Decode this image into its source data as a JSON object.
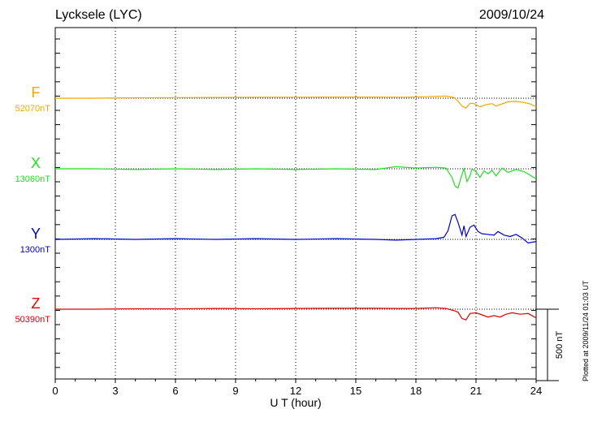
{
  "chart_data": {
    "type": "line",
    "title": "Lycksele (LYC)",
    "date": "2009/10/24",
    "xlabel": "U T (hour)",
    "xlim": [
      0,
      24
    ],
    "xticks": [
      0,
      3,
      6,
      9,
      12,
      15,
      18,
      21,
      24
    ],
    "grid": "vertical dotted at every 3 hours",
    "scale_bar": {
      "label": "500 nT",
      "value_nT": 500
    },
    "note": "Plotted at 2009/11/24 01:03 UT",
    "series": [
      {
        "name": "F",
        "baseline_label": "52070nT",
        "baseline_nT": 52070,
        "color": "#f0a800",
        "points": [
          [
            0,
            0
          ],
          [
            2,
            0
          ],
          [
            4,
            3
          ],
          [
            6,
            4
          ],
          [
            8,
            5
          ],
          [
            10,
            6
          ],
          [
            12,
            7
          ],
          [
            14,
            8
          ],
          [
            16,
            8
          ],
          [
            17.5,
            7
          ],
          [
            18.5,
            10
          ],
          [
            19,
            12
          ],
          [
            19.5,
            15
          ],
          [
            19.9,
            5
          ],
          [
            20.1,
            -20
          ],
          [
            20.3,
            -55
          ],
          [
            20.5,
            -70
          ],
          [
            20.7,
            -35
          ],
          [
            20.9,
            -38
          ],
          [
            21.2,
            -60
          ],
          [
            21.5,
            -45
          ],
          [
            21.8,
            -38
          ],
          [
            22,
            -55
          ],
          [
            22.3,
            -40
          ],
          [
            22.6,
            -25
          ],
          [
            23,
            -22
          ],
          [
            23.4,
            -30
          ],
          [
            23.7,
            -40
          ],
          [
            24,
            -60
          ]
        ]
      },
      {
        "name": "X",
        "baseline_label": "13060nT",
        "baseline_nT": 13060,
        "color": "#22dd22",
        "points": [
          [
            0,
            0
          ],
          [
            2,
            0
          ],
          [
            4,
            -5
          ],
          [
            6,
            0
          ],
          [
            8,
            -5
          ],
          [
            10,
            0
          ],
          [
            12,
            -5
          ],
          [
            14,
            0
          ],
          [
            16,
            -5
          ],
          [
            17,
            15
          ],
          [
            18,
            5
          ],
          [
            19,
            10
          ],
          [
            19.5,
            5
          ],
          [
            19.8,
            -60
          ],
          [
            19.95,
            -120
          ],
          [
            20.1,
            -135
          ],
          [
            20.3,
            -40
          ],
          [
            20.4,
            0
          ],
          [
            20.55,
            -90
          ],
          [
            20.7,
            -50
          ],
          [
            20.8,
            0
          ],
          [
            21,
            -20
          ],
          [
            21.2,
            -60
          ],
          [
            21.4,
            -15
          ],
          [
            21.6,
            -35
          ],
          [
            21.8,
            -10
          ],
          [
            22,
            -50
          ],
          [
            22.3,
            5
          ],
          [
            22.6,
            -25
          ],
          [
            23,
            -5
          ],
          [
            23.4,
            -20
          ],
          [
            23.7,
            -45
          ],
          [
            24,
            -70
          ]
        ]
      },
      {
        "name": "Y",
        "baseline_label": "1300nT",
        "baseline_nT": 1300,
        "color": "#0000cc",
        "points": [
          [
            0,
            0
          ],
          [
            2,
            5
          ],
          [
            4,
            0
          ],
          [
            6,
            5
          ],
          [
            8,
            0
          ],
          [
            10,
            5
          ],
          [
            12,
            0
          ],
          [
            14,
            5
          ],
          [
            16,
            0
          ],
          [
            17,
            -5
          ],
          [
            18,
            0
          ],
          [
            19,
            5
          ],
          [
            19.4,
            15
          ],
          [
            19.6,
            60
          ],
          [
            19.8,
            165
          ],
          [
            19.95,
            175
          ],
          [
            20.1,
            120
          ],
          [
            20.3,
            30
          ],
          [
            20.4,
            95
          ],
          [
            20.5,
            20
          ],
          [
            20.7,
            85
          ],
          [
            20.9,
            100
          ],
          [
            21.1,
            55
          ],
          [
            21.3,
            40
          ],
          [
            21.6,
            35
          ],
          [
            21.9,
            30
          ],
          [
            22.1,
            55
          ],
          [
            22.4,
            30
          ],
          [
            22.7,
            20
          ],
          [
            23,
            35
          ],
          [
            23.3,
            10
          ],
          [
            23.6,
            -25
          ],
          [
            24,
            -15
          ]
        ]
      },
      {
        "name": "Z",
        "baseline_label": "50390nT",
        "baseline_nT": 50390,
        "color": "#dd0000",
        "points": [
          [
            0,
            0
          ],
          [
            2,
            0
          ],
          [
            4,
            3
          ],
          [
            6,
            2
          ],
          [
            8,
            5
          ],
          [
            10,
            3
          ],
          [
            12,
            5
          ],
          [
            14,
            6
          ],
          [
            16,
            6
          ],
          [
            17,
            5
          ],
          [
            18,
            5
          ],
          [
            19,
            10
          ],
          [
            19.5,
            5
          ],
          [
            19.9,
            -10
          ],
          [
            20.1,
            -20
          ],
          [
            20.3,
            -65
          ],
          [
            20.5,
            -75
          ],
          [
            20.7,
            -30
          ],
          [
            21,
            -25
          ],
          [
            21.3,
            -40
          ],
          [
            21.6,
            -55
          ],
          [
            21.9,
            -45
          ],
          [
            22.2,
            -55
          ],
          [
            22.5,
            -35
          ],
          [
            22.8,
            -25
          ],
          [
            23.2,
            -35
          ],
          [
            23.6,
            -30
          ],
          [
            24,
            -60
          ]
        ]
      }
    ]
  }
}
